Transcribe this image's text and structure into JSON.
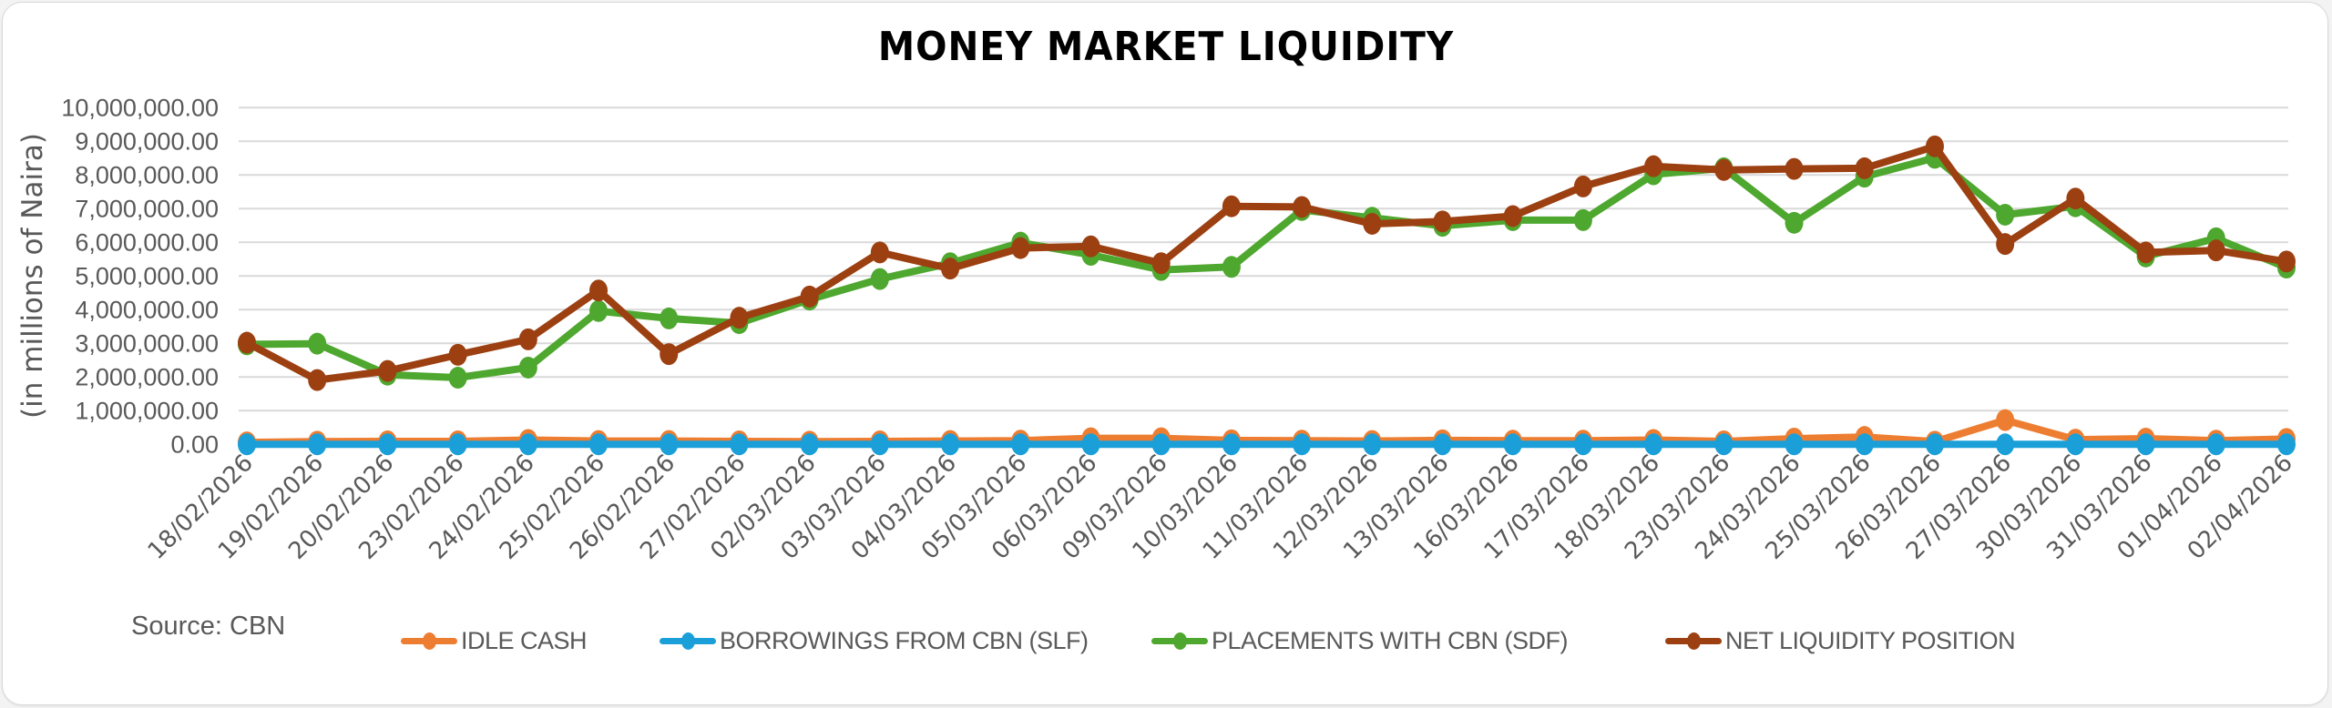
{
  "chart_data": {
    "type": "line",
    "title": "MONEY MARKET LIQUIDITY",
    "xlabel": "",
    "ylabel": "(in millions of Naira)",
    "ylim": [
      0,
      10000000
    ],
    "yticks": [
      "0.00",
      "1,000,000.00",
      "2,000,000.00",
      "3,000,000.00",
      "4,000,000.00",
      "5,000,000.00",
      "6,000,000.00",
      "7,000,000.00",
      "8,000,000.00",
      "9,000,000.00",
      "10,000,000.00"
    ],
    "grid": true,
    "legend_position": "bottom",
    "source_note": "Source: CBN",
    "categories": [
      "18/02/2026",
      "19/02/2026",
      "20/02/2026",
      "23/02/2026",
      "24/02/2026",
      "25/02/2026",
      "26/02/2026",
      "27/02/2026",
      "02/03/2026",
      "03/03/2026",
      "04/03/2026",
      "05/03/2026",
      "06/03/2026",
      "09/03/2026",
      "10/03/2026",
      "11/03/2026",
      "12/03/2026",
      "13/03/2026",
      "16/03/2026",
      "17/03/2026",
      "18/03/2026",
      "23/03/2026",
      "24/03/2026",
      "25/03/2026",
      "26/03/2026",
      "27/03/2026",
      "30/03/2026",
      "31/03/2026",
      "01/04/2026",
      "02/04/2026"
    ],
    "series": [
      {
        "name": "IDLE CASH",
        "color": "#ED7D31",
        "values": [
          60000,
          80000,
          90000,
          90000,
          130000,
          100000,
          100000,
          90000,
          80000,
          90000,
          100000,
          110000,
          180000,
          180000,
          120000,
          110000,
          100000,
          120000,
          110000,
          110000,
          130000,
          90000,
          170000,
          220000,
          80000,
          720000,
          140000,
          170000,
          110000,
          160000
        ]
      },
      {
        "name": "BORROWINGS FROM CBN (SLF)",
        "color": "#1A9FD9",
        "values": [
          0,
          0,
          0,
          0,
          0,
          0,
          0,
          0,
          0,
          0,
          0,
          0,
          0,
          0,
          0,
          0,
          0,
          0,
          0,
          0,
          0,
          0,
          0,
          0,
          0,
          0,
          0,
          0,
          0,
          0
        ]
      },
      {
        "name": "PLACEMENTS WITH CBN (SDF)",
        "color": "#4EA72E",
        "values": [
          2970000,
          2990000,
          2070000,
          1980000,
          2280000,
          3960000,
          3740000,
          3600000,
          4300000,
          4910000,
          5380000,
          5990000,
          5630000,
          5180000,
          5270000,
          6960000,
          6730000,
          6490000,
          6660000,
          6660000,
          8020000,
          8200000,
          6580000,
          7950000,
          8510000,
          6820000,
          7070000,
          5580000,
          6120000,
          5250000
        ]
      },
      {
        "name": "NET LIQUIDITY POSITION",
        "color": "#9C4012",
        "values": [
          3020000,
          1910000,
          2180000,
          2660000,
          3120000,
          4570000,
          2680000,
          3760000,
          4390000,
          5700000,
          5220000,
          5830000,
          5880000,
          5380000,
          7070000,
          7050000,
          6550000,
          6620000,
          6780000,
          7660000,
          8260000,
          8150000,
          8180000,
          8200000,
          8850000,
          5950000,
          7300000,
          5700000,
          5760000,
          5430000
        ]
      }
    ]
  }
}
